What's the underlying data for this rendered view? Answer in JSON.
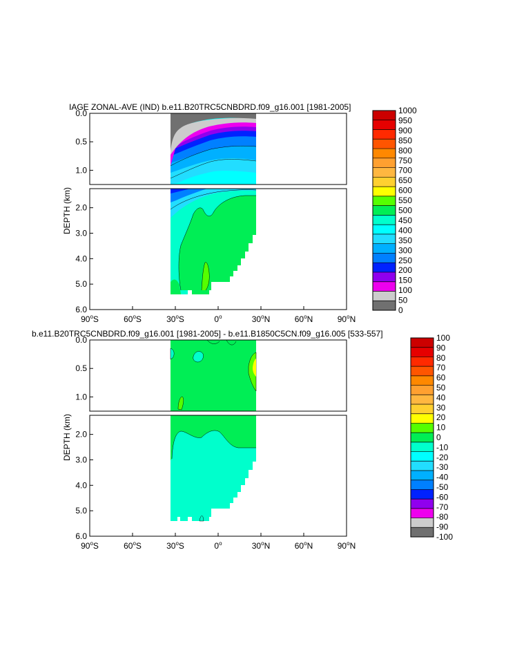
{
  "chart_data": [
    {
      "type": "heatmap",
      "title": "IAGE ZONAL-AVE (IND) b.e11.B20TRC5CNBDRD.f09_g16.001 [1981-2005]",
      "ylabel": "DEPTH (km)",
      "x_ticks": [
        {
          "deg": -90,
          "label": "90",
          "hemi": "S"
        },
        {
          "deg": -60,
          "label": "60",
          "hemi": "S"
        },
        {
          "deg": -30,
          "label": "30",
          "hemi": "S"
        },
        {
          "deg": 0,
          "label": "0",
          "hemi": ""
        },
        {
          "deg": 30,
          "label": "30",
          "hemi": "N"
        },
        {
          "deg": 60,
          "label": "60",
          "hemi": "N"
        },
        {
          "deg": 90,
          "label": "90",
          "hemi": "N"
        }
      ],
      "y_upper_ticks": [
        "0.0",
        "0.5",
        "1.0"
      ],
      "y_lower_ticks": [
        "2.0",
        "3.0",
        "4.0",
        "5.0",
        "6.0"
      ],
      "xlim": [
        -90,
        90
      ],
      "ylim_upper_km": [
        0,
        1.25
      ],
      "ylim_lower_km": [
        1.25,
        6.0
      ],
      "data_extent_lat": [
        -33,
        26
      ],
      "colorbar": {
        "labels": [
          "1000",
          "950",
          "900",
          "850",
          "800",
          "750",
          "700",
          "650",
          "600",
          "550",
          "500",
          "450",
          "400",
          "350",
          "300",
          "250",
          "200",
          "150",
          "100",
          "50",
          "0"
        ],
        "colors": [
          "#cc0000",
          "#e60000",
          "#ff2a00",
          "#ff5500",
          "#ff8800",
          "#ffa030",
          "#ffb740",
          "#ffd030",
          "#ffff00",
          "#55ff00",
          "#00ee55",
          "#00ffcc",
          "#00ffff",
          "#22ddff",
          "#00b0ff",
          "#0080ff",
          "#0022ff",
          "#9000ee",
          "#ee00ee",
          "#cccccc",
          "#707070"
        ]
      }
    },
    {
      "type": "heatmap",
      "title": "b.e11.B20TRC5CNBDRD.f09_g16.001 [1981-2005] - b.e11.B1850C5CN.f09_g16.005 [533-557]",
      "ylabel": "DEPTH (km)",
      "x_ticks": [
        {
          "deg": -90,
          "label": "90",
          "hemi": "S"
        },
        {
          "deg": -60,
          "label": "60",
          "hemi": "S"
        },
        {
          "deg": -30,
          "label": "30",
          "hemi": "S"
        },
        {
          "deg": 0,
          "label": "0",
          "hemi": ""
        },
        {
          "deg": 30,
          "label": "30",
          "hemi": "N"
        },
        {
          "deg": 60,
          "label": "60",
          "hemi": "N"
        },
        {
          "deg": 90,
          "label": "90",
          "hemi": "N"
        }
      ],
      "y_upper_ticks": [
        "0.0",
        "0.5",
        "1.0"
      ],
      "y_lower_ticks": [
        "2.0",
        "3.0",
        "4.0",
        "5.0",
        "6.0"
      ],
      "xlim": [
        -90,
        90
      ],
      "ylim_upper_km": [
        0,
        1.25
      ],
      "ylim_lower_km": [
        1.25,
        6.0
      ],
      "data_extent_lat": [
        -33,
        26
      ],
      "colorbar": {
        "labels": [
          "100",
          "90",
          "80",
          "70",
          "60",
          "50",
          "40",
          "30",
          "20",
          "10",
          "0",
          "-10",
          "-20",
          "-30",
          "-40",
          "-50",
          "-60",
          "-70",
          "-80",
          "-90",
          "-100"
        ],
        "colors": [
          "#cc0000",
          "#e60000",
          "#ff2a00",
          "#ff5500",
          "#ff8800",
          "#ffa030",
          "#ffb740",
          "#ffd030",
          "#ffff00",
          "#55ff00",
          "#00ee55",
          "#00ffcc",
          "#00ffff",
          "#22ddff",
          "#00b0ff",
          "#0080ff",
          "#0022ff",
          "#9000ee",
          "#ee00ee",
          "#cccccc",
          "#707070"
        ]
      }
    }
  ]
}
